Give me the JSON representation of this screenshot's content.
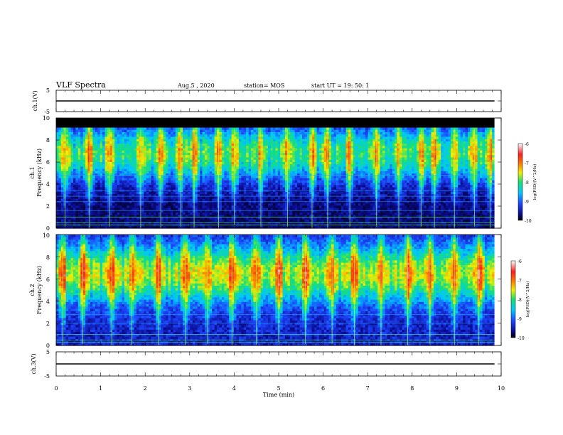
{
  "header": {
    "title": "VLF Spectra",
    "date": "Aug.5 , 2020",
    "station": "station= MOS",
    "start": "start UT = 19: 50: 1"
  },
  "colors": {
    "spectrogram_colormap": [
      "#000000",
      "#0a0a8c",
      "#1e46ff",
      "#00c8ff",
      "#18e070",
      "#f0f000",
      "#ff7800",
      "#ff1e1e",
      "#ffffff"
    ],
    "line_color": "#000000"
  },
  "chart_data": [
    {
      "id": "ch1_voltage",
      "type": "line",
      "ylabel": "ch.1(V)",
      "ylim": [
        -5,
        5
      ],
      "yticks": [
        "5",
        "-5"
      ],
      "series": [
        {
          "x": [
            0,
            9.85
          ],
          "y": [
            0,
            0
          ]
        }
      ]
    },
    {
      "id": "ch1_spectrogram",
      "type": "heatmap",
      "ylabel_line1": "ch.1",
      "ylabel_line2": "Frequency (kHz)",
      "xlim": [
        0,
        10
      ],
      "ylim": [
        0,
        10
      ],
      "data_xmax": 9.85,
      "yticks": [
        "0",
        "2",
        "4",
        "6",
        "8",
        "10"
      ],
      "colorbar": {
        "label": "log(PSD)(V^2/Hz)",
        "range": [
          -10,
          -6
        ],
        "ticks": [
          "-6",
          "-7",
          "-8",
          "-9",
          "-10"
        ]
      },
      "band_center_khz": 6.8,
      "band_peak_log_psd": -7.0,
      "noise_floor_log_psd": -9.6,
      "top_cutoff_khz": 9.2,
      "persistent_line_khz": [
        0.3,
        0.5,
        1.0,
        1.6,
        2.4,
        2.9,
        3.4,
        4.8
      ],
      "burst_times_min": [
        0.2,
        0.75,
        1.2,
        1.9,
        2.35,
        2.8,
        3.1,
        3.65,
        4.0,
        4.6,
        5.2,
        5.75,
        6.1,
        6.6,
        7.2,
        7.7,
        8.2,
        8.5,
        8.95,
        9.4,
        9.75
      ]
    },
    {
      "id": "ch2_spectrogram",
      "type": "heatmap",
      "ylabel_line1": "ch.2",
      "ylabel_line2": "Frequency (kHz)",
      "xlim": [
        0,
        10
      ],
      "ylim": [
        0,
        10
      ],
      "data_xmax": 9.85,
      "yticks": [
        "0",
        "2",
        "4",
        "6",
        "8",
        "10"
      ],
      "colorbar": {
        "label": "log(PSD)(V^2/Hz)",
        "range": [
          -10,
          -6
        ],
        "ticks": [
          "-6",
          "-7",
          "-8",
          "-9",
          "-10"
        ]
      },
      "band_center_khz": 6.5,
      "band_peak_log_psd": -6.6,
      "noise_floor_log_psd": -9.3,
      "top_cutoff_khz": 10,
      "persistent_line_khz": [
        0.3,
        0.5,
        1.0,
        2.0,
        2.8
      ],
      "burst_times_min": [
        0.15,
        0.6,
        1.25,
        1.7,
        2.3,
        2.9,
        3.4,
        3.95,
        4.5,
        5.0,
        5.6,
        6.2,
        6.7,
        7.3,
        7.9,
        8.4,
        8.95,
        9.5
      ]
    },
    {
      "id": "ch3_voltage",
      "type": "line",
      "ylabel": "ch.3(V)",
      "xlabel": "Time (min)",
      "xlim": [
        0,
        10
      ],
      "xticks": [
        "0",
        "1",
        "2",
        "3",
        "4",
        "5",
        "6",
        "7",
        "8",
        "9",
        "10"
      ],
      "ylim": [
        -5,
        5
      ],
      "yticks": [
        "5",
        "-5"
      ],
      "series": [
        {
          "x": [
            0,
            9.85
          ],
          "y": [
            0,
            0
          ]
        }
      ]
    }
  ]
}
